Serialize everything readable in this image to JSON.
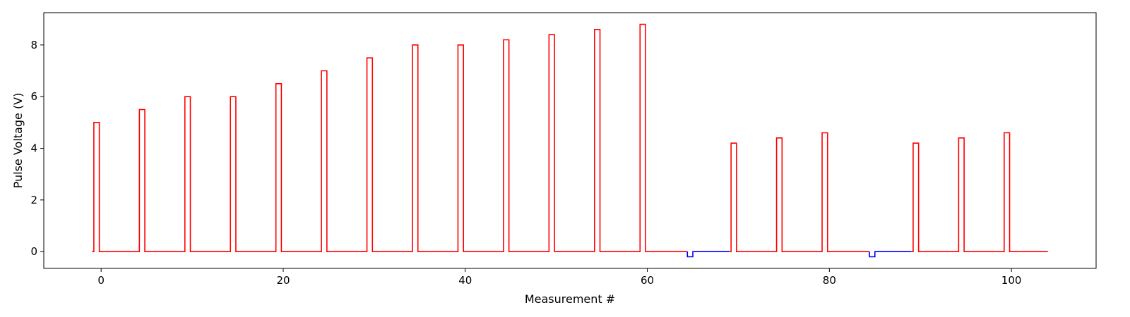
{
  "chart_data": {
    "type": "line",
    "title": "",
    "xlabel": "Measurement #",
    "ylabel": "Pulse Voltage (V)",
    "xlim": [
      -6.3,
      109.3
    ],
    "ylim": [
      -0.65,
      9.25
    ],
    "grid": false,
    "legend": "none",
    "xticks": [
      0,
      20,
      40,
      60,
      80,
      100
    ],
    "yticks": [
      0,
      2,
      4,
      6,
      8
    ],
    "pulse_width": 0.6,
    "series": [
      {
        "color": "#ff0000",
        "segments": [
          {
            "x_start": -1,
            "x_end": 64.4,
            "pulses": [
              {
                "x": -0.8,
                "v": 5.0
              },
              {
                "x": 4.2,
                "v": 5.5
              },
              {
                "x": 9.2,
                "v": 6.0
              },
              {
                "x": 14.2,
                "v": 6.0
              },
              {
                "x": 19.2,
                "v": 6.5
              },
              {
                "x": 24.2,
                "v": 7.0
              },
              {
                "x": 29.2,
                "v": 7.5
              },
              {
                "x": 34.2,
                "v": 8.0
              },
              {
                "x": 39.2,
                "v": 8.0
              },
              {
                "x": 44.2,
                "v": 8.2
              },
              {
                "x": 49.2,
                "v": 8.4
              },
              {
                "x": 54.2,
                "v": 8.6
              },
              {
                "x": 59.2,
                "v": 8.8
              }
            ]
          },
          {
            "x_start": 69.0,
            "x_end": 84.4,
            "pulses": [
              {
                "x": 69.2,
                "v": 4.2
              },
              {
                "x": 74.2,
                "v": 4.4
              },
              {
                "x": 79.2,
                "v": 4.6
              }
            ]
          },
          {
            "x_start": 89.0,
            "x_end": 104.0,
            "pulses": [
              {
                "x": 89.2,
                "v": 4.2
              },
              {
                "x": 94.2,
                "v": 4.4
              },
              {
                "x": 99.2,
                "v": 4.6
              }
            ]
          }
        ]
      },
      {
        "color": "#0000ff",
        "segments": [
          {
            "x_start": 64.4,
            "x_end": 69.0,
            "pulses": [
              {
                "x": 64.4,
                "v": -0.2
              }
            ]
          },
          {
            "x_start": 84.4,
            "x_end": 89.0,
            "pulses": [
              {
                "x": 84.4,
                "v": -0.2
              }
            ]
          }
        ]
      }
    ]
  }
}
